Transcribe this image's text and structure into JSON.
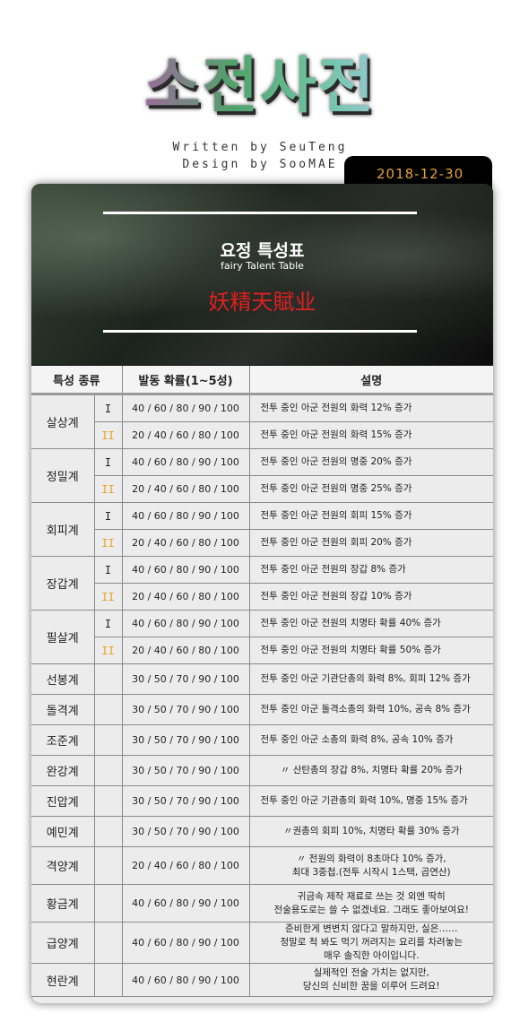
{
  "logo": {
    "text": "소전사전"
  },
  "credits": {
    "line1": "Written by SeuTeng",
    "line2": "Design by SooMAE"
  },
  "date": "2018-12-30",
  "banner": {
    "title": "요정 특성표",
    "subtitle": "fairy Talent Table",
    "hanja": "妖精天賦业"
  },
  "table": {
    "headers": [
      "특성 종류",
      "발동 확률(1~5성)",
      "설명"
    ],
    "groups": [
      {
        "type": "살상계",
        "rows": [
          {
            "grade": "I",
            "prob": "40 / 60 / 80 / 90 / 100",
            "desc": "전투 중인 아군 전원의 화력 12% 증가"
          },
          {
            "grade": "II",
            "prob": "20 / 40 / 60 / 80 / 100",
            "desc": "전투 중인 아군 전원의 화력 15% 증가"
          }
        ]
      },
      {
        "type": "정밀계",
        "rows": [
          {
            "grade": "I",
            "prob": "40 / 60 / 80 / 90 / 100",
            "desc": "전투 중인 아군 전원의 명중 20% 증가"
          },
          {
            "grade": "II",
            "prob": "20 / 40 / 60 / 80 / 100",
            "desc": "전투 중인 아군 전원의 명중 25% 증가"
          }
        ]
      },
      {
        "type": "회피계",
        "rows": [
          {
            "grade": "I",
            "prob": "40 / 60 / 80 / 90 / 100",
            "desc": "전투 중인 아군 전원의 회피 15% 증가"
          },
          {
            "grade": "II",
            "prob": "20 / 40 / 60 / 80 / 100",
            "desc": "전투 중인 아군 전원의 회피 20% 증가"
          }
        ]
      },
      {
        "type": "장갑계",
        "rows": [
          {
            "grade": "I",
            "prob": "40 / 60 / 80 / 90 / 100",
            "desc": "전투 중인 아군 전원의 장갑 8% 증가"
          },
          {
            "grade": "II",
            "prob": "20 / 40 / 60 / 80 / 100",
            "desc": "전투 중인 아군 전원의 장갑 10% 증가"
          }
        ]
      },
      {
        "type": "필살계",
        "rows": [
          {
            "grade": "I",
            "prob": "40 / 60 / 80 / 90 / 100",
            "desc": "전투 중인 아군 전원의 치명타 확률 40% 증가"
          },
          {
            "grade": "II",
            "prob": "20 / 40 / 60 / 80 / 100",
            "desc": "전투 중인 아군 전원의 치명타 확률 50% 증가"
          }
        ]
      }
    ],
    "singles": [
      {
        "type": "선봉계",
        "prob": "30 / 50 / 70 / 90 / 100",
        "desc": "전투 중인 아군 기관단총의 화력 8%, 회피 12% 증가"
      },
      {
        "type": "돌격계",
        "prob": "30 / 50 / 70 / 90 / 100",
        "desc": "전투 중인 아군 돌격소총의 화력 10%, 공속 8% 증가"
      },
      {
        "type": "조준계",
        "prob": "30 / 50 / 70 / 90 / 100",
        "desc": "전투 중인 아군 소총의 화력 8%, 공속 10% 증가"
      },
      {
        "type": "완강계",
        "prob": "30 / 50 / 70 / 90 / 100",
        "desc": "〃 산탄총의 장갑 8%, 치명타 확률 20% 증가"
      },
      {
        "type": "진압계",
        "prob": "30 / 50 / 70 / 90 / 100",
        "desc": "전투 중인 아군 기관총의 화력 10%, 명중 15% 증가"
      },
      {
        "type": "예민계",
        "prob": "30 / 50 / 70 / 90 / 100",
        "desc": "〃권총의 회피 10%, 치명타 확률 30% 증가"
      },
      {
        "type": "격양계",
        "prob": "20 / 40 / 60 / 80 / 100",
        "desc": "〃 전원의 화력이 8초마다 10% 증가,\n최대 3중첩.(전투 시작시 1스택, 곱연산)"
      },
      {
        "type": "황금계",
        "prob": "40 / 60 / 80 / 90 / 100",
        "desc": "귀금속 제작 재료로 쓰는 것 외엔 딱히\n전술용도로는 쓸 수 없겠네요. 그래도 좋아보여요!"
      },
      {
        "type": "급양계",
        "prob": "40 / 60 / 80 / 90 / 100",
        "desc": "준비한게 변변치 않다고 말하지만, 실은……\n정말로 척 봐도 먹기 꺼려지는 요리를 차려놓는\n매우 솔직한 아이입니다."
      },
      {
        "type": "현란계",
        "prob": "40 / 60 / 80 / 90 / 100",
        "desc": "실제적인 전술 가치는 없지만,\n당신의 신비한 꿈을 이루어 드려요!"
      }
    ]
  }
}
